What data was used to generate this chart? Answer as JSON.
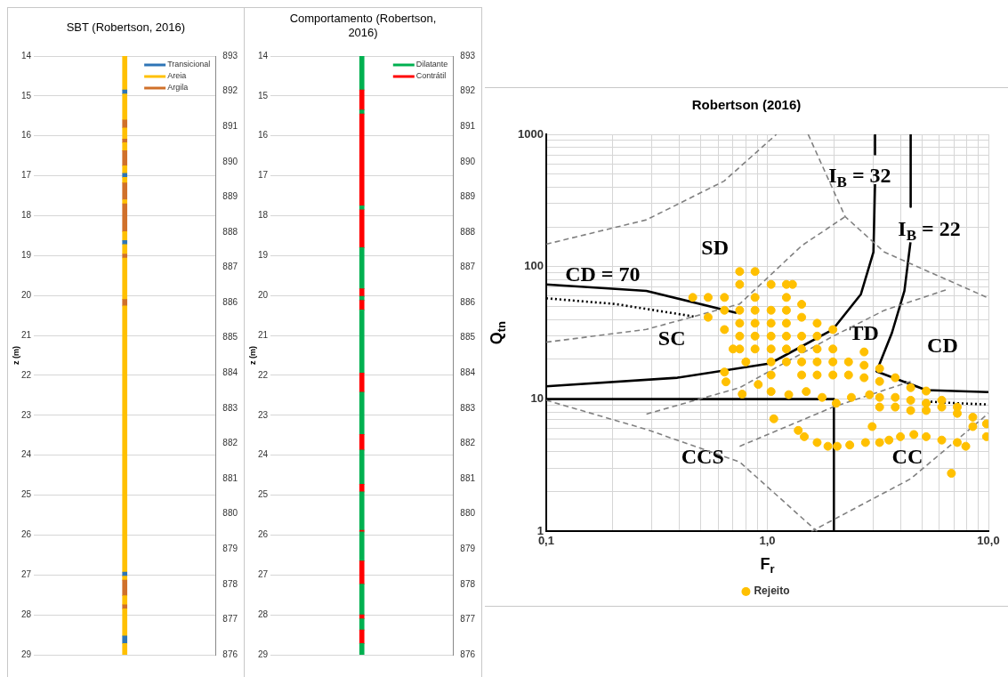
{
  "chart_data": [
    {
      "type": "bar",
      "title": "SBT (Robertson, 2016)",
      "ylabel": "z (m)",
      "categories": [
        null
      ],
      "ylim": [
        29,
        14
      ],
      "yticks": [
        14,
        15,
        16,
        17,
        18,
        19,
        20,
        21,
        22,
        23,
        24,
        25,
        26,
        27,
        28,
        29
      ],
      "y2lim": [
        876,
        893
      ],
      "y2ticks": [
        876,
        877,
        878,
        879,
        880,
        881,
        882,
        883,
        884,
        885,
        886,
        887,
        888,
        889,
        890,
        891,
        892,
        893
      ],
      "grid": "y",
      "legend": "top right",
      "series": [
        {
          "color": "#ffc000",
          "base": [
            14
          ],
          "values": [
            0.85
          ]
        },
        {
          "name": "Transicional",
          "color": "#2e75b6",
          "base": [
            14.85
          ],
          "values": [
            0.1
          ]
        },
        {
          "name": "Areia",
          "color": "#ffc000",
          "base": [
            14.95
          ],
          "values": [
            0.65
          ]
        },
        {
          "name": "Argila",
          "color": "#d0702a",
          "base": [
            15.6
          ],
          "values": [
            0.2
          ]
        },
        {
          "color": "#ffc000",
          "base": [
            15.8
          ],
          "values": [
            0.28
          ]
        },
        {
          "color": "#d0702a",
          "base": [
            16.08
          ],
          "values": [
            0.09
          ]
        },
        {
          "color": "#ffc000",
          "base": [
            16.17
          ],
          "values": [
            0.2
          ]
        },
        {
          "color": "#d0702a",
          "base": [
            16.37
          ],
          "values": [
            0.38
          ]
        },
        {
          "color": "#ffc000",
          "base": [
            16.75
          ],
          "values": [
            0.19
          ]
        },
        {
          "color": "#2e75b6",
          "base": [
            16.94
          ],
          "values": [
            0.1
          ]
        },
        {
          "color": "#ffc000",
          "base": [
            17.04
          ],
          "values": [
            0.14
          ]
        },
        {
          "color": "#d0702a",
          "base": [
            17.18
          ],
          "values": [
            0.42
          ]
        },
        {
          "color": "#ffc000",
          "base": [
            17.6
          ],
          "values": [
            0.1
          ]
        },
        {
          "color": "#d0702a",
          "base": [
            17.7
          ],
          "values": [
            0.7
          ]
        },
        {
          "color": "#ffc000",
          "base": [
            18.4
          ],
          "values": [
            0.22
          ]
        },
        {
          "color": "#2e75b6",
          "base": [
            18.62
          ],
          "values": [
            0.1
          ]
        },
        {
          "color": "#ffc000",
          "base": [
            18.72
          ],
          "values": [
            0.24
          ]
        },
        {
          "color": "#d0702a",
          "base": [
            18.96
          ],
          "values": [
            0.1
          ]
        },
        {
          "color": "#ffc000",
          "base": [
            19.06
          ],
          "values": [
            1.04
          ]
        },
        {
          "color": "#d0702a",
          "base": [
            20.1
          ],
          "values": [
            0.16
          ]
        },
        {
          "color": "#ffc000",
          "base": [
            20.26
          ],
          "values": [
            6.67
          ]
        },
        {
          "color": "#2e75b6",
          "base": [
            26.93
          ],
          "values": [
            0.1
          ]
        },
        {
          "color": "#ffc000",
          "base": [
            27.03
          ],
          "values": [
            0.1
          ]
        },
        {
          "color": "#d0702a",
          "base": [
            27.13
          ],
          "values": [
            0.39
          ]
        },
        {
          "color": "#ffc000",
          "base": [
            27.52
          ],
          "values": [
            0.23
          ]
        },
        {
          "color": "#d0702a",
          "base": [
            27.75
          ],
          "values": [
            0.1
          ]
        },
        {
          "color": "#ffc000",
          "base": [
            27.85
          ],
          "values": [
            0.68
          ]
        },
        {
          "color": "#2e75b6",
          "base": [
            28.53
          ],
          "values": [
            0.19
          ]
        },
        {
          "color": "#ffc000",
          "base": [
            28.72
          ],
          "values": [
            0.28
          ]
        }
      ]
    },
    {
      "type": "bar",
      "title": "Comportamento (Robertson, 2016)",
      "ylabel": "z (m)",
      "categories": [
        null
      ],
      "ylim": [
        29,
        14
      ],
      "yticks": [
        14,
        15,
        16,
        17,
        18,
        19,
        20,
        21,
        22,
        23,
        24,
        25,
        26,
        27,
        28,
        29
      ],
      "y2lim": [
        876,
        893
      ],
      "y2ticks": [
        876,
        877,
        878,
        879,
        880,
        881,
        882,
        883,
        884,
        885,
        886,
        887,
        888,
        889,
        890,
        891,
        892,
        893
      ],
      "grid": "y",
      "legend": "top right",
      "series": [
        {
          "name": "Dilatante",
          "color": "#00b050",
          "base": [
            14
          ],
          "values": [
            0.85
          ]
        },
        {
          "name": "Contrátil",
          "color": "#ff0000",
          "base": [
            14.85
          ],
          "values": [
            0.5
          ]
        },
        {
          "color": "#00b050",
          "base": [
            15.35
          ],
          "values": [
            0.1
          ]
        },
        {
          "color": "#ff0000",
          "base": [
            15.45
          ],
          "values": [
            2.3
          ]
        },
        {
          "color": "#00b050",
          "base": [
            17.75
          ],
          "values": [
            0.1
          ]
        },
        {
          "color": "#ff0000",
          "base": [
            17.85
          ],
          "values": [
            0.95
          ]
        },
        {
          "color": "#00b050",
          "base": [
            18.8
          ],
          "values": [
            1.03
          ]
        },
        {
          "color": "#ff0000",
          "base": [
            19.83
          ],
          "values": [
            0.19
          ]
        },
        {
          "color": "#00b050",
          "base": [
            20.02
          ],
          "values": [
            0.1
          ]
        },
        {
          "color": "#ff0000",
          "base": [
            20.12
          ],
          "values": [
            0.24
          ]
        },
        {
          "color": "#00b050",
          "base": [
            20.36
          ],
          "values": [
            1.58
          ]
        },
        {
          "color": "#ff0000",
          "base": [
            21.94
          ],
          "values": [
            0.48
          ]
        },
        {
          "color": "#00b050",
          "base": [
            22.42
          ],
          "values": [
            1.06
          ]
        },
        {
          "color": "#ff0000",
          "base": [
            23.48
          ],
          "values": [
            0.39
          ]
        },
        {
          "color": "#00b050",
          "base": [
            23.87
          ],
          "values": [
            0.86
          ]
        },
        {
          "color": "#ff0000",
          "base": [
            24.73
          ],
          "values": [
            0.19
          ]
        },
        {
          "color": "#00b050",
          "base": [
            24.92
          ],
          "values": [
            0.96
          ]
        },
        {
          "color": "#ff0000",
          "base": [
            25.88
          ],
          "values": [
            0.04
          ]
        },
        {
          "color": "#00b050",
          "base": [
            25.92
          ],
          "values": [
            0.73
          ]
        },
        {
          "color": "#ff0000",
          "base": [
            26.65
          ],
          "values": [
            0.58
          ]
        },
        {
          "color": "#00b050",
          "base": [
            27.23
          ],
          "values": [
            0.77
          ]
        },
        {
          "color": "#ff0000",
          "base": [
            28.0
          ],
          "values": [
            0.1
          ]
        },
        {
          "color": "#00b050",
          "base": [
            28.1
          ],
          "values": [
            0.28
          ]
        },
        {
          "color": "#ff0000",
          "base": [
            28.38
          ],
          "values": [
            0.34
          ]
        },
        {
          "color": "#00b050",
          "base": [
            28.72
          ],
          "values": [
            0.28
          ]
        }
      ]
    },
    {
      "type": "scatter",
      "title": "Robertson (2016)",
      "xlabel": "F$_{r}$",
      "ylabel": "Q$_{tn}$",
      "log": "xy",
      "xlim": [
        0.1,
        10
      ],
      "ylim": [
        1,
        1000
      ],
      "xticks": [
        {
          "value": 0.1,
          "label": "0,1"
        },
        {
          "value": 0.2,
          "label": null
        },
        {
          "value": 0.3,
          "label": null
        },
        {
          "value": 0.4,
          "label": null
        },
        {
          "value": 0.5,
          "label": null
        },
        {
          "value": 0.6,
          "label": null
        },
        {
          "value": 0.7,
          "label": null
        },
        {
          "value": 0.8,
          "label": null
        },
        {
          "value": 0.9,
          "label": null
        },
        {
          "value": 1,
          "label": "1,0"
        },
        {
          "value": 2,
          "label": null
        },
        {
          "value": 3,
          "label": null
        },
        {
          "value": 4,
          "label": null
        },
        {
          "value": 5,
          "label": null
        },
        {
          "value": 6,
          "label": null
        },
        {
          "value": 7,
          "label": null
        },
        {
          "value": 8,
          "label": null
        },
        {
          "value": 9,
          "label": null
        },
        {
          "value": 10,
          "label": "10,0"
        }
      ],
      "yticks": [
        1,
        {
          "value": 2,
          "label": null
        },
        {
          "value": 3,
          "label": null
        },
        {
          "value": 4,
          "label": null
        },
        {
          "value": 5,
          "label": null
        },
        {
          "value": 6,
          "label": null
        },
        {
          "value": 7,
          "label": null
        },
        {
          "value": 8,
          "label": null
        },
        {
          "value": 9,
          "label": null
        },
        10,
        {
          "value": 20,
          "label": null
        },
        {
          "value": 30,
          "label": null
        },
        {
          "value": 40,
          "label": null
        },
        {
          "value": 50,
          "label": null
        },
        {
          "value": 60,
          "label": null
        },
        {
          "value": 70,
          "label": null
        },
        {
          "value": 80,
          "label": null
        },
        {
          "value": 90,
          "label": null
        },
        100,
        {
          "value": 200,
          "label": null
        },
        {
          "value": 300,
          "label": null
        },
        {
          "value": 400,
          "label": null
        },
        {
          "value": 500,
          "label": null
        },
        {
          "value": 600,
          "label": null
        },
        {
          "value": 700,
          "label": null
        },
        {
          "value": 800,
          "label": null
        },
        {
          "value": 900,
          "label": null
        },
        1000
      ],
      "grid": true,
      "legend": "bottom",
      "annotations": [
        "SD",
        "SC",
        "TD",
        "CD",
        "CCS",
        "CC",
        "CD = 70",
        "I$_{B}$ = 32",
        "I$_{B}$ = 22"
      ],
      "series": [
        {
          "type": "line",
          "color": "#000000",
          "line_style": "solid",
          "x": [
            0.1,
            0.284,
            0.726
          ],
          "values": [
            73.4,
            65.7,
            44.8
          ]
        },
        {
          "type": "line",
          "color": "#000000",
          "line_style": "dotted",
          "x": [
            0.1,
            0.205,
            0.476
          ],
          "values": [
            57.7,
            52.3,
            41.8
          ]
        },
        {
          "type": "line",
          "color": "#000000",
          "line_style": "solid",
          "x": [
            0.1,
            0.392,
            1.03,
            1.98,
            2.65,
            3.02,
            3.07,
            null,
            3.07,
            3.07
          ],
          "values": [
            12.5,
            14.5,
            18.6,
            33.6,
            62,
            129,
            420,
            null,
            694,
            1000
          ]
        },
        {
          "type": "line",
          "color": "#000000",
          "line_style": "solid",
          "x": [
            4.45,
            4.45,
            null,
            4.44,
            4.17,
            3.66,
            3.12,
            5.23,
            10
          ],
          "values": [
            1000,
            283,
            null,
            153,
            65.7,
            31.6,
            16.2,
            11.7,
            11.3
          ]
        },
        {
          "type": "line",
          "color": "#000000",
          "line_style": "dotted",
          "x": [
            5.23,
            7.25,
            10
          ],
          "values": [
            9.6,
            9.3,
            9.1
          ]
        },
        {
          "type": "line",
          "color": "#000000",
          "line_style": "solid",
          "x": [
            0.1,
            2,
            2
          ],
          "values": [
            10,
            10,
            1
          ]
        },
        {
          "type": "line",
          "color": "#808080",
          "line_style": "dashed",
          "x": [
            0.1,
            0.284,
            0.637,
            1.1
          ],
          "values": [
            148,
            226,
            443,
            1000
          ]
        },
        {
          "type": "line",
          "color": "#808080",
          "line_style": "dashed",
          "x": [
            1.53,
            2.25,
            3.38,
            10
          ],
          "values": [
            1000,
            239,
            129,
            58
          ]
        },
        {
          "type": "line",
          "color": "#808080",
          "line_style": "dashed",
          "x": [
            0.1,
            0.284,
            0.75,
            1.43,
            2.25
          ],
          "values": [
            26.9,
            33.6,
            52.3,
            144,
            239
          ]
        },
        {
          "type": "line",
          "color": "#808080",
          "line_style": "dashed",
          "x": [
            0.284,
            0.75,
            1.98,
            3.38,
            6.46
          ],
          "values": [
            7.7,
            12.2,
            29.8,
            46.8,
            67
          ]
        },
        {
          "type": "line",
          "color": "#808080",
          "line_style": "dashed",
          "x": [
            0.1,
            0.284,
            0.75,
            1.68
          ],
          "values": [
            9.8,
            5.9,
            3.35,
            1.0
          ]
        },
        {
          "type": "line",
          "color": "#808080",
          "line_style": "dashed",
          "x": [
            0.75,
            1.98,
            4.45
          ],
          "values": [
            4.4,
            8.7,
            13.6
          ]
        },
        {
          "type": "line",
          "color": "#808080",
          "line_style": "dashed",
          "x": [
            1.58,
            4.45,
            10
          ],
          "values": [
            1.0,
            2.5,
            7.8
          ]
        },
        {
          "name": "Rejeito",
          "color": "#ffc000",
          "marker": "circle",
          "x": [
            0.75,
            0.88,
            1.22,
            1.3,
            0.46,
            0.54,
            0.64,
            0.75,
            1.04,
            0.88,
            1.22,
            1.43,
            0.54,
            0.64,
            0.75,
            0.88,
            1.04,
            1.22,
            1.43,
            1.68,
            0.75,
            0.88,
            1.04,
            1.22,
            0.64,
            0.75,
            0.88,
            1.04,
            1.22,
            1.43,
            1.68,
            1.98,
            0.75,
            0.88,
            1.04,
            1.22,
            1.43,
            1.68,
            1.98,
            2.74,
            0.64,
            0.7,
            0.8,
            1.04,
            1.22,
            1.43,
            1.68,
            1.98,
            2.33,
            2.74,
            3.22,
            1.04,
            1.43,
            1.68,
            1.98,
            2.33,
            2.74,
            3.22,
            3.79,
            4.45,
            5.23,
            0.65,
            0.77,
            0.91,
            1.04,
            1.25,
            1.5,
            1.77,
            2.05,
            2.4,
            2.9,
            3.22,
            3.79,
            4.45,
            5.23,
            6.15,
            7.23,
            8.5,
            9.8,
            9.8,
            8.5,
            6.15,
            5.23,
            7.23,
            3.79,
            4.45,
            3.22,
            1.07,
            1.38,
            1.47,
            1.68,
            1.88,
            2.07,
            2.36,
            2.78,
            2.98,
            3.22,
            3.55,
            4.0,
            4.6,
            5.23,
            6.15,
            7.23,
            7.9,
            6.8
          ],
          "values": [
            92,
            92,
            73.5,
            73.5,
            58.6,
            58.6,
            58.6,
            73.5,
            73.5,
            58.6,
            58.6,
            52,
            41.5,
            46.9,
            46.9,
            46.9,
            46.9,
            46.9,
            41.5,
            37.4,
            37.4,
            37.4,
            37.4,
            37.4,
            33.5,
            29.9,
            29.9,
            29.9,
            29.9,
            29.9,
            29.9,
            33.5,
            23.9,
            23.9,
            23.9,
            23.9,
            23.9,
            23.9,
            23.9,
            22.7,
            16,
            23.9,
            19.1,
            19.1,
            19.1,
            19.1,
            19.1,
            19.1,
            19.1,
            18,
            17,
            15.2,
            15.2,
            15.2,
            15.2,
            15.2,
            14.5,
            13.6,
            14.5,
            12.2,
            11.5,
            13.5,
            10.9,
            12.9,
            11.4,
            10.8,
            11.4,
            10.3,
            9.3,
            10.3,
            10.8,
            10.3,
            10.3,
            9.8,
            9.3,
            8.7,
            7.8,
            7.3,
            6.5,
            5.2,
            6.2,
            9.8,
            8.2,
            8.7,
            8.7,
            8.2,
            8.7,
            7.1,
            5.8,
            5.2,
            4.7,
            4.4,
            4.4,
            4.5,
            4.7,
            6.2,
            4.7,
            4.9,
            5.2,
            5.4,
            5.2,
            4.9,
            4.7,
            4.4,
            2.75
          ]
        }
      ]
    }
  ]
}
